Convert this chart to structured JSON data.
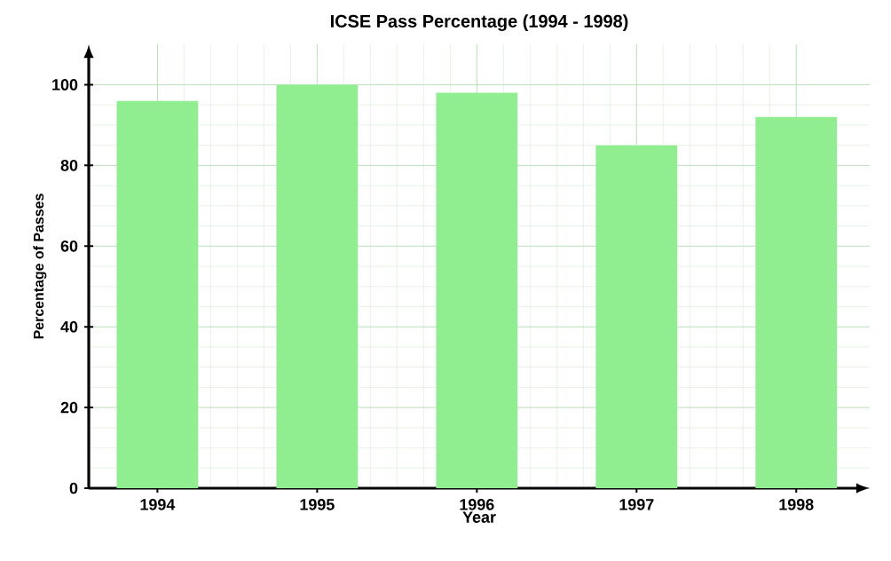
{
  "chart_data": {
    "type": "bar",
    "title": "ICSE Pass Percentage (1994 - 1998)",
    "xlabel": "Year",
    "ylabel": "Percentage of Passes",
    "categories": [
      "1994",
      "1995",
      "1996",
      "1997",
      "1998"
    ],
    "values": [
      96,
      100,
      98,
      85,
      92
    ],
    "color": "#90ee90",
    "ylim": [
      0,
      110
    ],
    "yticks": [
      0,
      20,
      40,
      60,
      80,
      100
    ],
    "grid": true
  }
}
